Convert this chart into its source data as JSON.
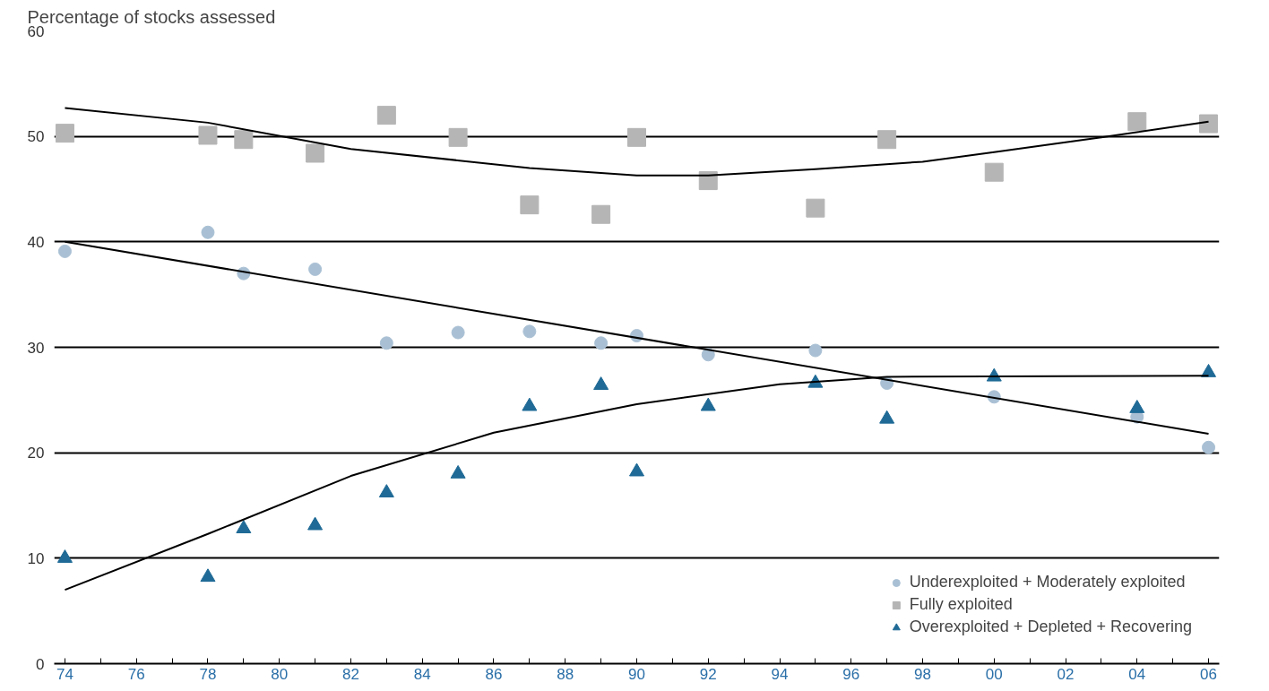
{
  "chart_data": {
    "type": "scatter",
    "ylabel": "Percentage of stocks assessed",
    "x": [
      1974,
      1978,
      1979,
      1981,
      1983,
      1985,
      1987,
      1989,
      1990,
      1992,
      1995,
      1997,
      2000,
      2004,
      2006
    ],
    "series": [
      {
        "name": "Underexploited + Moderately exploited",
        "color": "#a9c0d4",
        "marker": "circle",
        "values": [
          39.1,
          40.9,
          37.0,
          37.4,
          30.4,
          31.4,
          31.5,
          30.4,
          31.1,
          29.3,
          29.7,
          26.6,
          25.3,
          23.4,
          20.5
        ]
      },
      {
        "name": "Fully exploited",
        "color": "#b5b5b5",
        "marker": "square",
        "values": [
          50.3,
          50.1,
          49.7,
          48.4,
          52.0,
          49.9,
          43.5,
          42.6,
          49.9,
          45.8,
          43.2,
          49.7,
          46.6,
          51.4,
          51.2
        ]
      },
      {
        "name": "Overexploited + Depleted + Recovering",
        "color": "#1f6a96",
        "marker": "triangle",
        "values": [
          10.0,
          8.2,
          12.8,
          13.1,
          16.2,
          18.0,
          24.4,
          26.4,
          18.2,
          24.4,
          26.6,
          23.2,
          27.2,
          24.2,
          27.6
        ]
      },
      {
        "type": "line",
        "color": "#000000",
        "x": [
          1974,
          1978,
          1982,
          1987,
          1990,
          1992,
          1995,
          1998,
          2000,
          2003,
          2006
        ],
        "values": [
          52.7,
          51.3,
          48.8,
          47.0,
          46.3,
          46.3,
          46.9,
          47.6,
          48.5,
          49.9,
          51.4
        ]
      },
      {
        "type": "line",
        "color": "#000000",
        "x": [
          1974,
          2006
        ],
        "values": [
          40.0,
          21.8
        ]
      },
      {
        "type": "line",
        "color": "#000000",
        "x": [
          1974,
          1978,
          1982,
          1986,
          1990,
          1994,
          1997,
          2006
        ],
        "values": [
          7.0,
          12.3,
          17.8,
          21.9,
          24.6,
          26.5,
          27.2,
          27.3
        ]
      }
    ],
    "xlim": [
      1973.7,
      2006.3
    ],
    "ylim": [
      0,
      60
    ],
    "xticks": [
      {
        "value": 1974,
        "label": "74"
      },
      {
        "value": 1975,
        "label": null
      },
      {
        "value": 1976,
        "label": "76"
      },
      {
        "value": 1977,
        "label": null
      },
      {
        "value": 1978,
        "label": "78"
      },
      {
        "value": 1979,
        "label": null
      },
      {
        "value": 1980,
        "label": "80"
      },
      {
        "value": 1981,
        "label": null
      },
      {
        "value": 1982,
        "label": "82"
      },
      {
        "value": 1983,
        "label": null
      },
      {
        "value": 1984,
        "label": "84"
      },
      {
        "value": 1985,
        "label": null
      },
      {
        "value": 1986,
        "label": "86"
      },
      {
        "value": 1987,
        "label": null
      },
      {
        "value": 1988,
        "label": "88"
      },
      {
        "value": 1989,
        "label": null
      },
      {
        "value": 1990,
        "label": "90"
      },
      {
        "value": 1991,
        "label": null
      },
      {
        "value": 1992,
        "label": "92"
      },
      {
        "value": 1993,
        "label": null
      },
      {
        "value": 1994,
        "label": "94"
      },
      {
        "value": 1995,
        "label": null
      },
      {
        "value": 1996,
        "label": "96"
      },
      {
        "value": 1997,
        "label": null
      },
      {
        "value": 1998,
        "label": "98"
      },
      {
        "value": 1999,
        "label": null
      },
      {
        "value": 2000,
        "label": "00"
      },
      {
        "value": 2001,
        "label": null
      },
      {
        "value": 2002,
        "label": "02"
      },
      {
        "value": 2003,
        "label": null
      },
      {
        "value": 2004,
        "label": "04"
      },
      {
        "value": 2005,
        "label": null
      },
      {
        "value": 2006,
        "label": "06"
      }
    ],
    "yticks": [
      0,
      10,
      20,
      30,
      40,
      50,
      60
    ],
    "grid": "y",
    "legend": "bottom right"
  }
}
